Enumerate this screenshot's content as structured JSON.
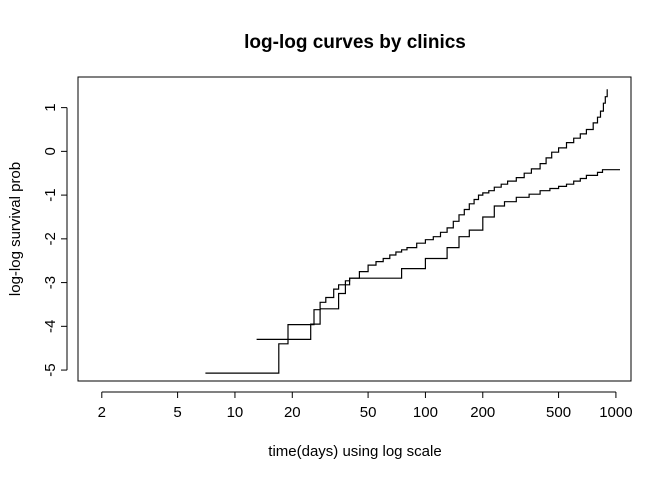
{
  "chart_data": {
    "type": "line",
    "title": "log-log curves by clinics",
    "xlabel": "time(days) using log scale",
    "ylabel": "log-log survival prob",
    "x_scale": "log",
    "xlim": [
      1.5,
      1200
    ],
    "ylim": [
      -5.25,
      1.7
    ],
    "x_ticks": [
      2,
      5,
      10,
      20,
      50,
      100,
      200,
      500,
      1000
    ],
    "y_ticks": [
      -5,
      -4,
      -3,
      -2,
      -1,
      0,
      1
    ],
    "grid": false,
    "series": [
      {
        "step": true,
        "x": [
          7,
          17,
          19,
          26,
          28,
          30,
          33,
          35,
          38,
          40,
          45,
          50,
          55,
          60,
          65,
          70,
          75,
          80,
          90,
          100,
          110,
          120,
          130,
          140,
          150,
          160,
          170,
          180,
          190,
          200,
          215,
          230,
          250,
          270,
          300,
          330,
          360,
          400,
          430,
          460,
          500,
          550,
          600,
          650,
          700,
          760,
          800,
          830,
          860,
          880,
          900
        ],
        "y": [
          -5.07,
          -4.4,
          -3.96,
          -3.62,
          -3.45,
          -3.34,
          -3.15,
          -3.05,
          -2.96,
          -2.9,
          -2.75,
          -2.6,
          -2.52,
          -2.45,
          -2.37,
          -2.3,
          -2.25,
          -2.2,
          -2.1,
          -2.02,
          -1.95,
          -1.85,
          -1.75,
          -1.6,
          -1.45,
          -1.33,
          -1.2,
          -1.1,
          -1.0,
          -0.95,
          -0.9,
          -0.82,
          -0.75,
          -0.68,
          -0.6,
          -0.5,
          -0.4,
          -0.28,
          -0.15,
          -0.02,
          0.08,
          0.2,
          0.3,
          0.4,
          0.5,
          0.65,
          0.78,
          0.92,
          1.1,
          1.25,
          1.42
        ]
      },
      {
        "step": true,
        "x": [
          13,
          19,
          25,
          28,
          35,
          38,
          40,
          75,
          100,
          130,
          150,
          170,
          200,
          230,
          260,
          300,
          350,
          400,
          450,
          500,
          550,
          600,
          650,
          700,
          800,
          850,
          1050
        ],
        "y": [
          -4.3,
          -4.3,
          -3.95,
          -3.6,
          -3.25,
          -3.05,
          -2.9,
          -2.68,
          -2.45,
          -2.2,
          -1.95,
          -1.8,
          -1.5,
          -1.25,
          -1.15,
          -1.05,
          -0.98,
          -0.9,
          -0.85,
          -0.8,
          -0.75,
          -0.68,
          -0.62,
          -0.55,
          -0.48,
          -0.42,
          -0.42
        ]
      }
    ]
  }
}
